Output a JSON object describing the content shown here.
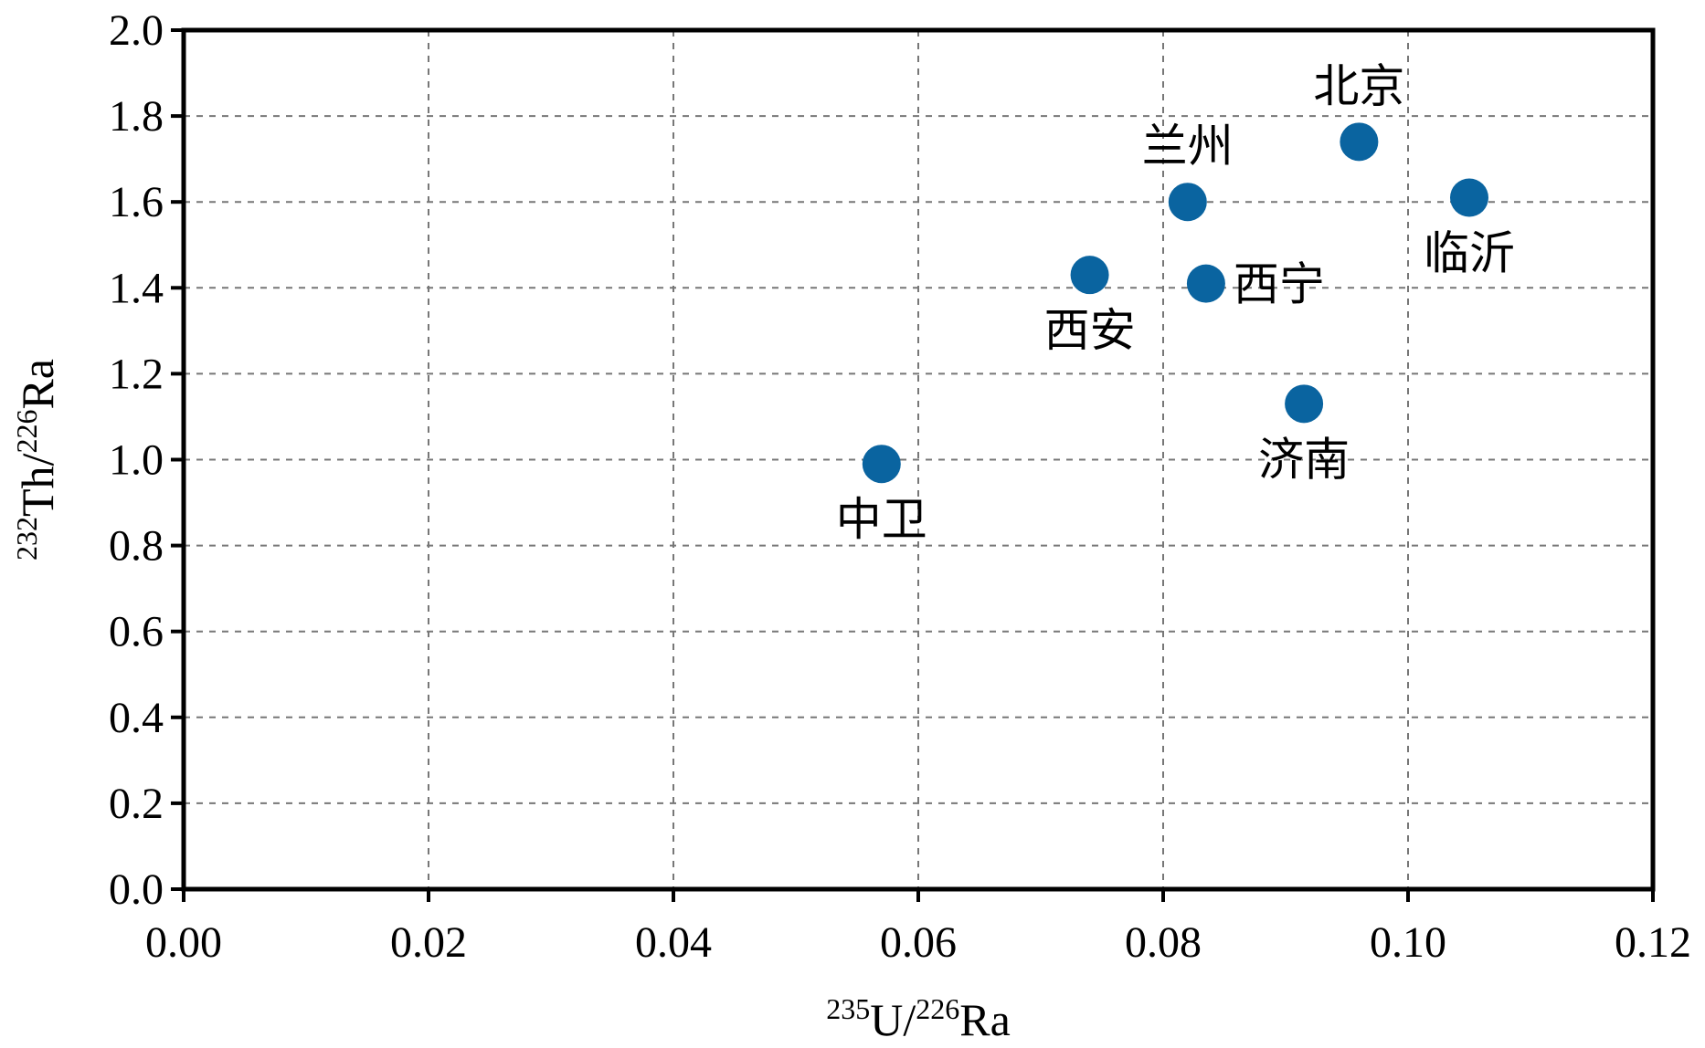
{
  "chart_data": {
    "type": "scatter",
    "title": "",
    "xlabel": {
      "iso_top": "235",
      "elem_a": "U",
      "slash": "/",
      "iso_bot": "226",
      "elem_b": "Ra"
    },
    "ylabel": {
      "iso_top": "232",
      "elem_a": "Th",
      "slash": "/",
      "iso_bot": "226",
      "elem_b": "Ra"
    },
    "xlim": [
      0.0,
      0.12
    ],
    "ylim": [
      0.0,
      2.0
    ],
    "x_ticks": [
      "0.00",
      "0.02",
      "0.04",
      "0.06",
      "0.08",
      "0.10",
      "0.12"
    ],
    "y_ticks": [
      "0.0",
      "0.2",
      "0.4",
      "0.6",
      "0.8",
      "1.0",
      "1.2",
      "1.4",
      "1.6",
      "1.8",
      "2.0"
    ],
    "grid": true,
    "marker_color": "#0a64a0",
    "points": [
      {
        "label": "中卫",
        "x": 0.057,
        "y": 0.99,
        "label_pos": "below"
      },
      {
        "label": "西安",
        "x": 0.074,
        "y": 1.43,
        "label_pos": "below"
      },
      {
        "label": "兰州",
        "x": 0.082,
        "y": 1.6,
        "label_pos": "above"
      },
      {
        "label": "西宁",
        "x": 0.0835,
        "y": 1.41,
        "label_pos": "right"
      },
      {
        "label": "济南",
        "x": 0.0915,
        "y": 1.13,
        "label_pos": "below"
      },
      {
        "label": "北京",
        "x": 0.096,
        "y": 1.74,
        "label_pos": "above"
      },
      {
        "label": "临沂",
        "x": 0.105,
        "y": 1.61,
        "label_pos": "below"
      }
    ]
  }
}
